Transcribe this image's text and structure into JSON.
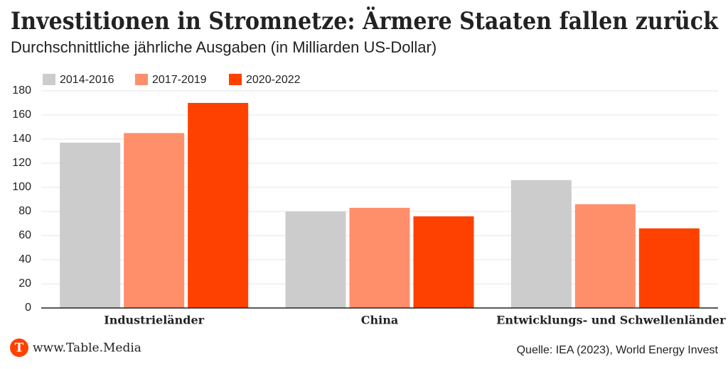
{
  "chart_data": {
    "type": "bar",
    "title": "Investitionen in Stromnetze: Ärmere Staaten fallen zurück",
    "subtitle": "Durchschnittliche jährliche Ausgaben (in Milliarden US-Dollar)",
    "categories": [
      "Industrieländer",
      "China",
      "Entwicklungs- und Schwellenländer"
    ],
    "series": [
      {
        "name": "2014-2016",
        "color": "#cccccc",
        "values": [
          137,
          80,
          106
        ]
      },
      {
        "name": "2017-2019",
        "color": "#ff8f6b",
        "values": [
          145,
          83,
          86
        ]
      },
      {
        "name": "2020-2022",
        "color": "#ff4100",
        "values": [
          170,
          76,
          66
        ]
      }
    ],
    "ylim": [
      0,
      180
    ],
    "yticks": [
      0,
      20,
      40,
      60,
      80,
      100,
      120,
      140,
      160,
      180
    ],
    "grid": true,
    "legend": "top-left"
  },
  "footer": {
    "logo": "T",
    "site": "www.Table.Media",
    "source": "Quelle: IEA (2023), World Energy Invest"
  }
}
